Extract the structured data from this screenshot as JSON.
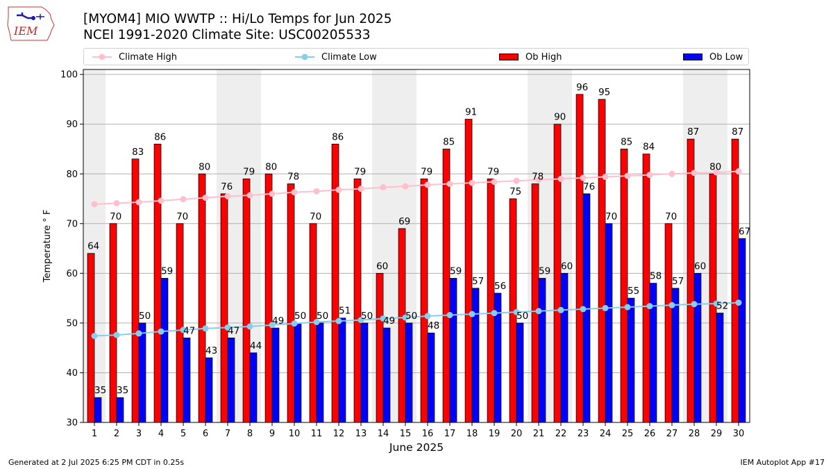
{
  "logo": {
    "text": "IEM"
  },
  "title": {
    "line1": "[MYOM4] MIO WWTP :: Hi/Lo Temps for Jun 2025",
    "line2": "NCEI 1991-2020 Climate Site: USC00205533"
  },
  "footer": {
    "left": "Generated at 2 Jul 2025 6:25 PM CDT in 0.25s",
    "right": "IEM Autoplot App #17"
  },
  "colors": {
    "ob_high": "#ff0000",
    "ob_low": "#0000ff",
    "climate_high": "#ffc0cb",
    "climate_low": "#87ceeb",
    "weekend_band": "#eeeeee",
    "grid": "#b0b0b0"
  },
  "chart_data": {
    "type": "bar",
    "xlabel": "June 2025",
    "ylabel": "Temperature ° F",
    "ylim": [
      30,
      101
    ],
    "yticks": [
      30,
      40,
      50,
      60,
      70,
      80,
      90,
      100
    ],
    "grid": "horizontal",
    "legend_placement": "top",
    "categories": [
      1,
      2,
      3,
      4,
      5,
      6,
      7,
      8,
      9,
      10,
      11,
      12,
      13,
      14,
      15,
      16,
      17,
      18,
      19,
      20,
      21,
      22,
      23,
      24,
      25,
      26,
      27,
      28,
      29,
      30
    ],
    "shaded_days": [
      1,
      7,
      8,
      14,
      15,
      21,
      22,
      28,
      29
    ],
    "series": [
      {
        "name": "Ob High",
        "kind": "bar",
        "values": [
          64,
          70,
          83,
          86,
          70,
          80,
          76,
          79,
          80,
          78,
          70,
          86,
          79,
          60,
          69,
          79,
          85,
          91,
          79,
          75,
          78,
          90,
          96,
          95,
          85,
          84,
          70,
          87,
          80,
          87
        ]
      },
      {
        "name": "Ob Low",
        "kind": "bar",
        "values": [
          35,
          35,
          50,
          59,
          47,
          43,
          47,
          44,
          49,
          50,
          50,
          51,
          50,
          49,
          50,
          48,
          59,
          57,
          56,
          50,
          59,
          60,
          76,
          70,
          55,
          58,
          57,
          60,
          52,
          67
        ]
      },
      {
        "name": "Climate High",
        "kind": "line",
        "values": [
          73.9,
          74.1,
          74.3,
          74.6,
          74.9,
          75.2,
          75.5,
          75.7,
          76.0,
          76.3,
          76.5,
          76.8,
          77.0,
          77.3,
          77.5,
          77.8,
          78.0,
          78.2,
          78.4,
          78.6,
          78.8,
          79.0,
          79.2,
          79.4,
          79.6,
          79.8,
          80.0,
          80.2,
          80.3,
          80.5
        ]
      },
      {
        "name": "Climate Low",
        "kind": "line",
        "values": [
          47.4,
          47.6,
          47.9,
          48.3,
          48.6,
          48.9,
          49.1,
          49.3,
          49.6,
          49.9,
          50.2,
          50.4,
          50.6,
          50.9,
          51.1,
          51.4,
          51.6,
          51.8,
          52.0,
          52.2,
          52.4,
          52.6,
          52.8,
          53.0,
          53.2,
          53.4,
          53.6,
          53.8,
          53.9,
          54.1
        ]
      }
    ]
  }
}
